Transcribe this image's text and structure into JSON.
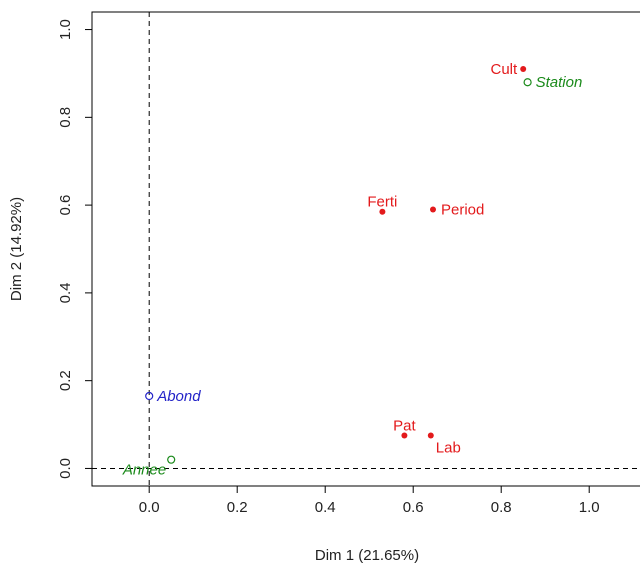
{
  "chart_data": {
    "type": "scatter",
    "xlabel": "Dim 1 (21.65%)",
    "ylabel": "Dim 2 (14.92%)",
    "xlim": [
      -0.13,
      1.12
    ],
    "ylim": [
      -0.04,
      1.04
    ],
    "xticks": [
      0.0,
      0.2,
      0.4,
      0.6,
      0.8,
      1.0
    ],
    "xtick_labels": [
      "0.0",
      "0.2",
      "0.4",
      "0.6",
      "0.8",
      "1.0"
    ],
    "yticks": [
      0.0,
      0.2,
      0.4,
      0.6,
      0.8,
      1.0
    ],
    "ytick_labels": [
      "0.0",
      "0.2",
      "0.4",
      "0.6",
      "0.8",
      "1.0"
    ],
    "reference_lines": {
      "x": 0,
      "y": 0,
      "style": "dashed"
    },
    "grid": false,
    "points": [
      {
        "label": "Cult",
        "x": 0.85,
        "y": 0.91,
        "marker": "filled",
        "color": "#e31a1c",
        "label_side": "left",
        "italic": false
      },
      {
        "label": "Station",
        "x": 0.86,
        "y": 0.88,
        "marker": "open",
        "color": "#1a8a1a",
        "label_side": "right",
        "italic": true
      },
      {
        "label": "Ferti",
        "x": 0.53,
        "y": 0.585,
        "marker": "filled",
        "color": "#e31a1c",
        "label_side": "above",
        "italic": false
      },
      {
        "label": "Period",
        "x": 0.645,
        "y": 0.59,
        "marker": "filled",
        "color": "#e31a1c",
        "label_side": "right",
        "italic": false
      },
      {
        "label": "Abond",
        "x": 0.0,
        "y": 0.165,
        "marker": "open",
        "color": "#2424c8",
        "label_side": "right",
        "italic": true
      },
      {
        "label": "Pat",
        "x": 0.58,
        "y": 0.075,
        "marker": "filled",
        "color": "#e31a1c",
        "label_side": "above",
        "italic": false
      },
      {
        "label": "Lab",
        "x": 0.64,
        "y": 0.075,
        "marker": "filled",
        "color": "#e31a1c",
        "label_side": "below-right",
        "italic": false
      },
      {
        "label": "Annee",
        "x": 0.05,
        "y": 0.02,
        "marker": "open",
        "color": "#1a8a1a",
        "label_side": "below-left",
        "italic": true
      }
    ]
  }
}
